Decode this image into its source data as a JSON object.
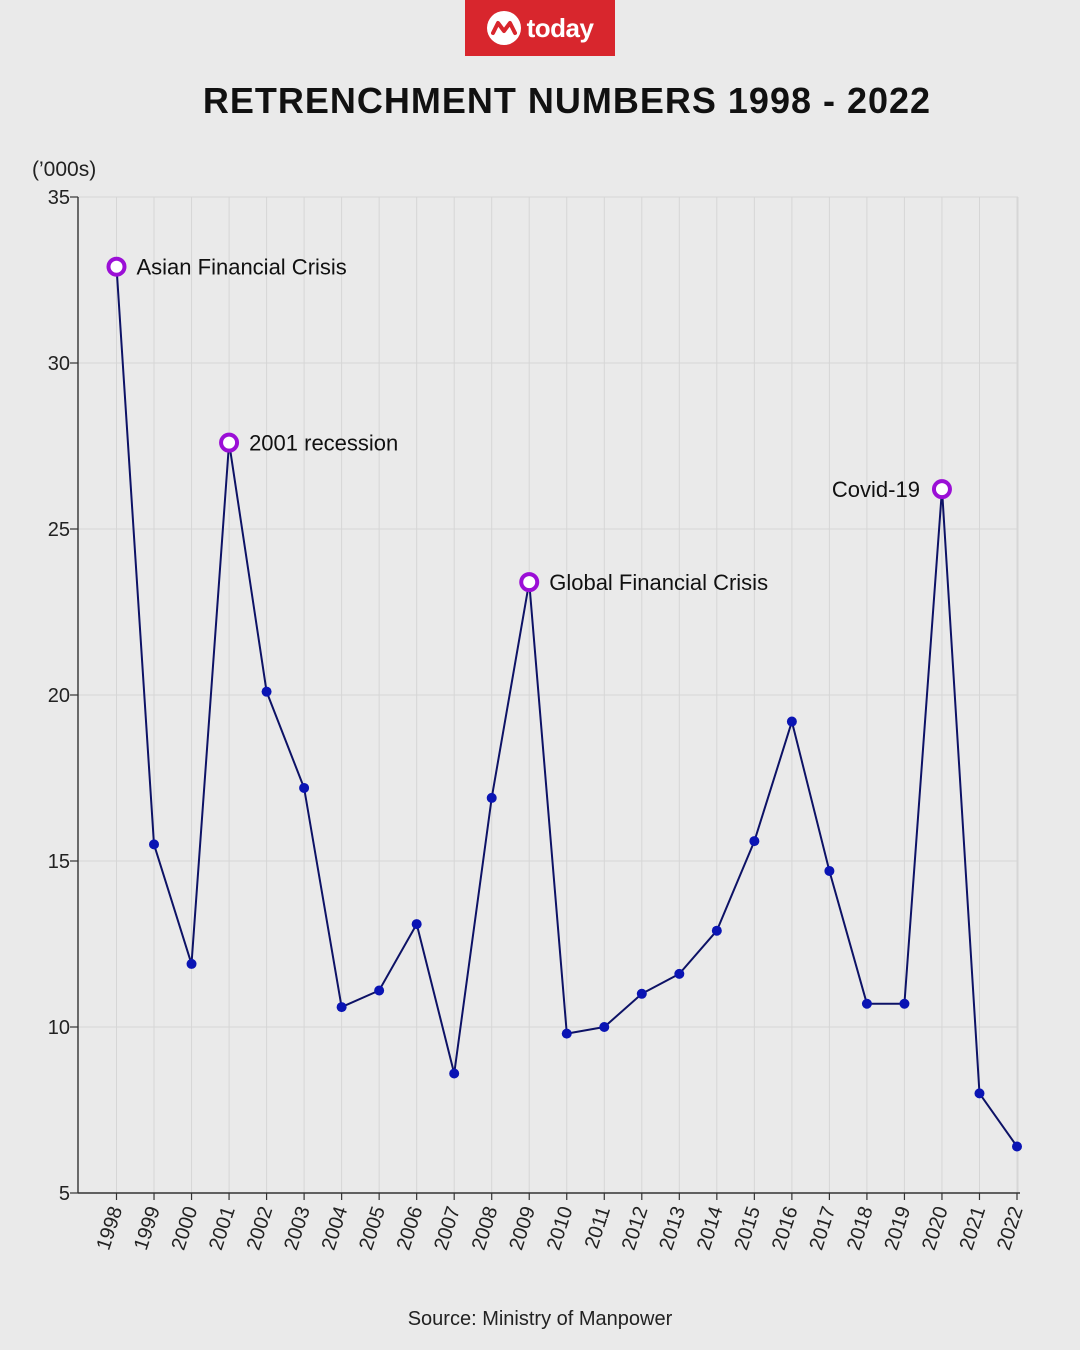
{
  "logo": {
    "text": "today",
    "mark": "mediacorp-mark-icon"
  },
  "colors": {
    "line": "#0d1266",
    "point": "#0a14b4",
    "highlight": "#9b0fd6",
    "grid": "#d6d6d6",
    "brand": "#d8262d"
  },
  "source": "Source: Ministry of Manpower",
  "chart_data": {
    "type": "line",
    "title": "RETRENCHMENT NUMBERS 1998 - 2022",
    "unit_label": "(’000s)",
    "ylim": [
      5,
      35
    ],
    "yticks": [
      5,
      10,
      15,
      20,
      25,
      30,
      35
    ],
    "grid": true,
    "x": [
      "1998",
      "1999",
      "2000",
      "2001",
      "2002",
      "2003",
      "2004",
      "2005",
      "2006",
      "2007",
      "2008",
      "2009",
      "2010",
      "2011",
      "2012",
      "2013",
      "2014",
      "2015",
      "2016",
      "2017",
      "2018",
      "2019",
      "2020",
      "2021",
      "2022"
    ],
    "series": [
      {
        "values": [
          32.9,
          15.5,
          11.9,
          27.6,
          20.1,
          17.2,
          10.6,
          11.1,
          13.1,
          8.6,
          16.9,
          23.4,
          9.8,
          10.0,
          11.0,
          11.6,
          12.9,
          15.6,
          19.2,
          14.7,
          10.7,
          10.7,
          26.2,
          8.0,
          6.4
        ]
      }
    ],
    "annotations": [
      {
        "x": "1998",
        "label": "Asian Financial Crisis",
        "side": "right"
      },
      {
        "x": "2001",
        "label": "2001 recession",
        "side": "right"
      },
      {
        "x": "2009",
        "label": "Global Financial Crisis",
        "side": "right"
      },
      {
        "x": "2020",
        "label": "Covid-19",
        "side": "left"
      }
    ]
  }
}
